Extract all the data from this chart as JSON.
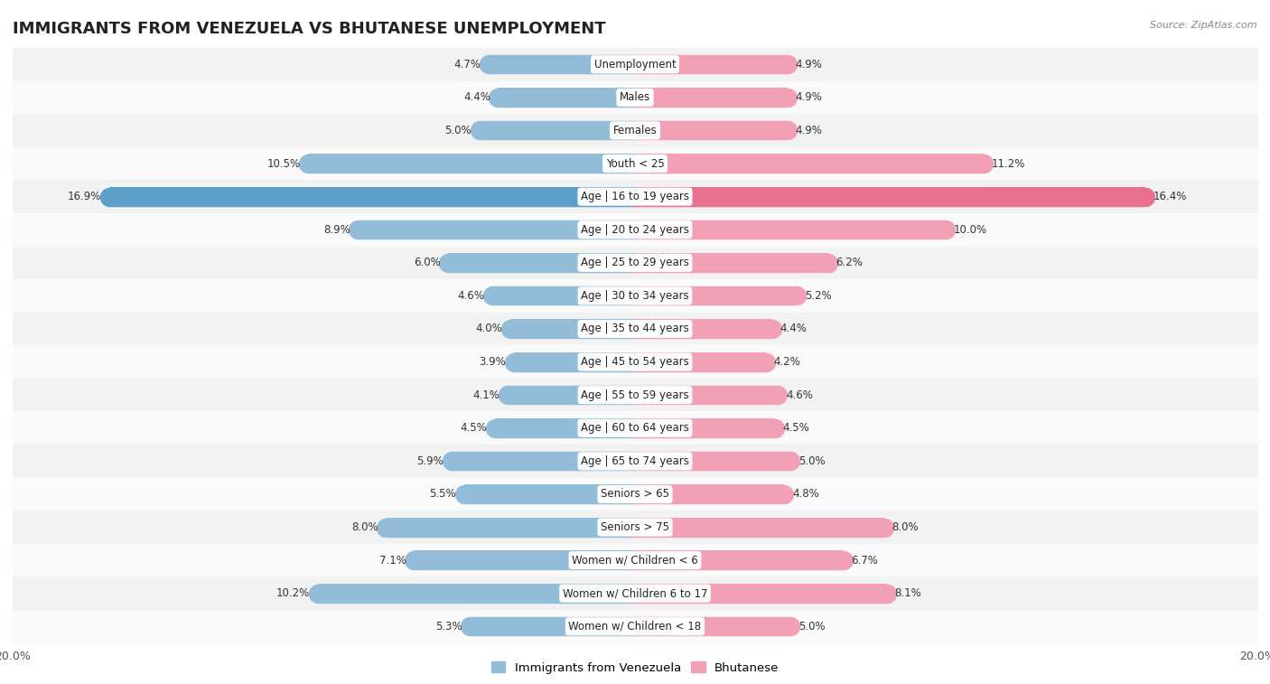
{
  "title": "IMMIGRANTS FROM VENEZUELA VS BHUTANESE UNEMPLOYMENT",
  "source": "Source: ZipAtlas.com",
  "categories": [
    "Unemployment",
    "Males",
    "Females",
    "Youth < 25",
    "Age | 16 to 19 years",
    "Age | 20 to 24 years",
    "Age | 25 to 29 years",
    "Age | 30 to 34 years",
    "Age | 35 to 44 years",
    "Age | 45 to 54 years",
    "Age | 55 to 59 years",
    "Age | 60 to 64 years",
    "Age | 65 to 74 years",
    "Seniors > 65",
    "Seniors > 75",
    "Women w/ Children < 6",
    "Women w/ Children 6 to 17",
    "Women w/ Children < 18"
  ],
  "venezuela_values": [
    4.7,
    4.4,
    5.0,
    10.5,
    16.9,
    8.9,
    6.0,
    4.6,
    4.0,
    3.9,
    4.1,
    4.5,
    5.9,
    5.5,
    8.0,
    7.1,
    10.2,
    5.3
  ],
  "bhutanese_values": [
    4.9,
    4.9,
    4.9,
    11.2,
    16.4,
    10.0,
    6.2,
    5.2,
    4.4,
    4.2,
    4.6,
    4.5,
    5.0,
    4.8,
    8.0,
    6.7,
    8.1,
    5.0
  ],
  "venezuela_color": "#92bcd8",
  "bhutanese_color": "#f2a0b5",
  "highlight_venezuela_color": "#5c9fc9",
  "highlight_bhutanese_color": "#e8728e",
  "bar_height": 0.58,
  "xlim": 20.0,
  "row_bg_odd": "#f2f2f2",
  "row_bg_even": "#fafafa",
  "label_fontsize": 8.5,
  "value_fontsize": 8.5,
  "title_fontsize": 13
}
